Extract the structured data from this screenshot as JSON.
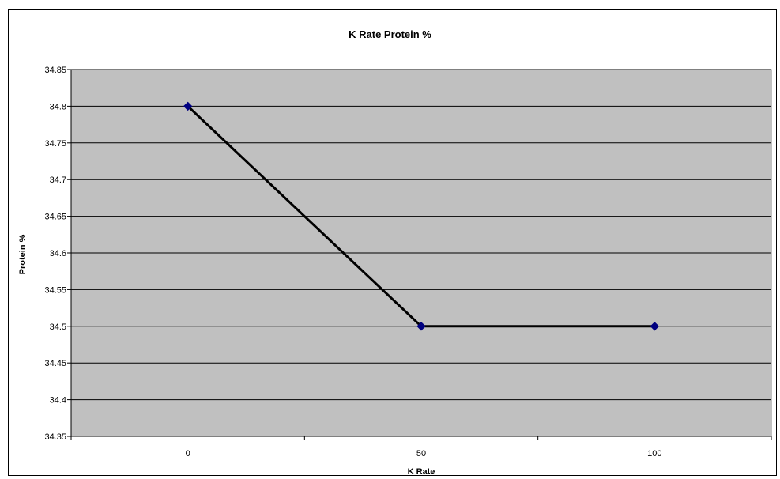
{
  "chart_data": {
    "type": "line",
    "title": "K Rate Protein %",
    "xlabel": "K Rate",
    "ylabel": "Protein %",
    "categories": [
      "0",
      "50",
      "100"
    ],
    "series": [
      {
        "values": [
          34.8,
          34.5,
          34.5
        ]
      }
    ],
    "ylim": [
      34.35,
      34.85
    ],
    "y_ticks": [
      "34.35",
      "34.4",
      "34.45",
      "34.5",
      "34.55",
      "34.6",
      "34.65",
      "34.7",
      "34.75",
      "34.8",
      "34.85"
    ],
    "grid": true,
    "plot_background": "#c0c0c0",
    "line_color": "#000000",
    "marker_color": "#000080",
    "marker": "diamond"
  }
}
